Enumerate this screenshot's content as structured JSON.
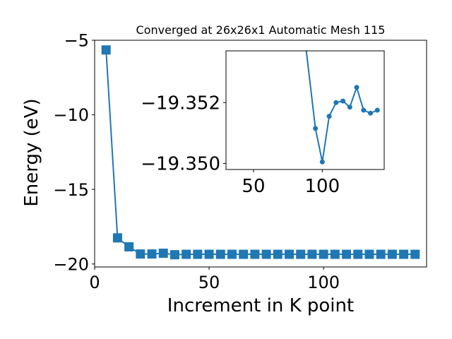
{
  "colors": {
    "series": "#1f77b4",
    "axis": "#000000",
    "background": "#ffffff"
  },
  "chart_data": [
    {
      "type": "line",
      "title": "Converged at 26x26x1 Automatic Mesh 115",
      "xlabel": "Increment in K point",
      "ylabel": "Energy (eV)",
      "xlim": [
        0,
        145
      ],
      "ylim": [
        -20.2,
        -5
      ],
      "xticks": [
        0,
        50,
        100
      ],
      "yticks": [
        -20,
        -15,
        -10,
        -5
      ],
      "xtick_labels": [
        "0",
        "50",
        "100"
      ],
      "ytick_labels": [
        "−20",
        "−15",
        "−10",
        "−5"
      ],
      "marker": "square",
      "grid": false,
      "series": [
        {
          "x": [
            5,
            10,
            15,
            20,
            25,
            30,
            35,
            40,
            45,
            50,
            55,
            60,
            65,
            70,
            75,
            80,
            85,
            90,
            95,
            100,
            105,
            110,
            115,
            120,
            125,
            130,
            135,
            140
          ],
          "y": [
            -5.65,
            -18.25,
            -18.85,
            -19.33,
            -19.33,
            -19.28,
            -19.38,
            -19.35,
            -19.35,
            -19.35,
            -19.35,
            -19.35,
            -19.35,
            -19.35,
            -19.35,
            -19.35,
            -19.35,
            -19.35,
            -19.35,
            -19.35,
            -19.35,
            -19.35,
            -19.35,
            -19.35,
            -19.35,
            -19.35,
            -19.35,
            -19.35
          ]
        }
      ]
    },
    {
      "type": "line",
      "title": "",
      "role": "inset",
      "xlim": [
        30,
        145
      ],
      "ylim": [
        -19.3498,
        -19.3537
      ],
      "xticks": [
        50,
        100
      ],
      "yticks": [
        -19.352,
        -19.35
      ],
      "xtick_labels": [
        "50",
        "100"
      ],
      "ytick_labels": [
        "−19.352",
        "−19.350"
      ],
      "marker": "circle",
      "series": [
        {
          "x": [
            85,
            95,
            100,
            105,
            110,
            115,
            120,
            125,
            130,
            135,
            140
          ],
          "y": [
            -19.355,
            -19.35115,
            -19.35005,
            -19.35155,
            -19.352,
            -19.35205,
            -19.35185,
            -19.3525,
            -19.35175,
            -19.35165,
            -19.35175
          ]
        }
      ]
    }
  ]
}
